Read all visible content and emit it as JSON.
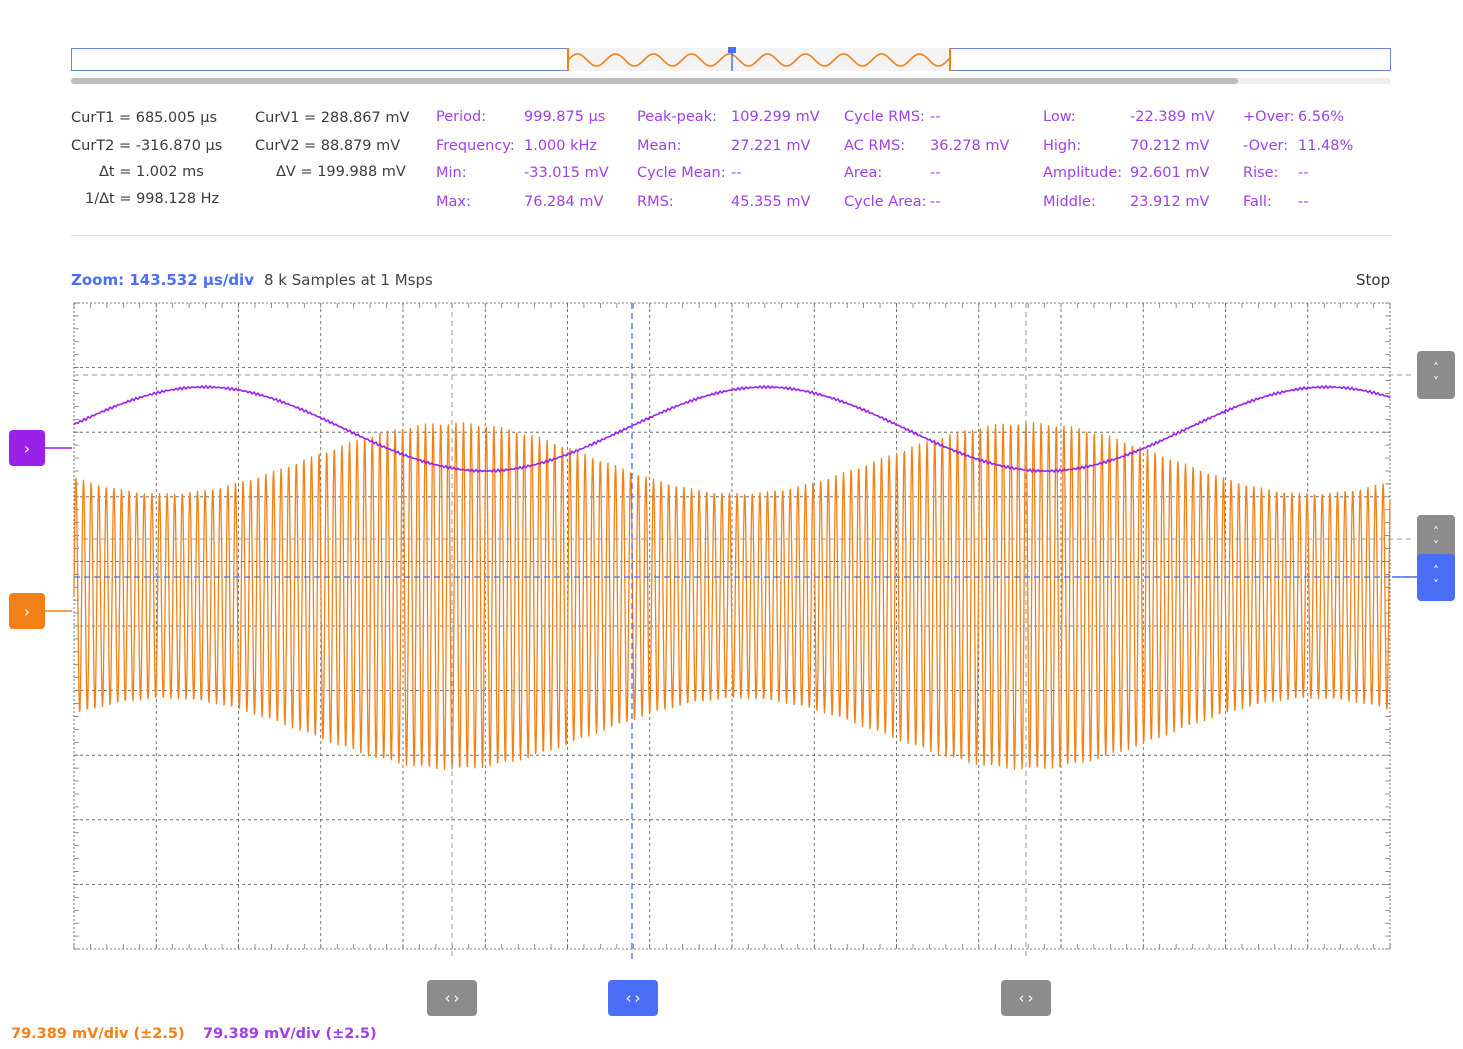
{
  "cursors": {
    "curT1": "CurT1 = 685.005 µs",
    "curT2": "CurT2 = -316.870 µs",
    "dt": "Δt = 1.002 ms",
    "inv_dt": "1/Δt = 998.128 Hz",
    "curV1": "CurV1 = 288.867 mV",
    "curV2": "CurV2 = 88.879 mV",
    "dv": "ΔV = 199.988 mV"
  },
  "measurements": {
    "period_label": "Period:",
    "period_value": "999.875 µs",
    "frequency_label": "Frequency:",
    "frequency_value": "1.000 kHz",
    "min_label": "Min:",
    "min_value": "-33.015 mV",
    "max_label": "Max:",
    "max_value": "76.284 mV",
    "peakpeak_label": "Peak-peak:",
    "peakpeak_value": "109.299 mV",
    "mean_label": "Mean:",
    "mean_value": "27.221 mV",
    "cyclemean_label": "Cycle Mean:",
    "cyclemean_value": "--",
    "rms_label": "RMS:",
    "rms_value": "45.355 mV",
    "cyclerms_label": "Cycle RMS:",
    "cyclerms_value": "--",
    "acrms_label": "AC RMS:",
    "acrms_value": "36.278 mV",
    "area_label": "Area:",
    "area_value": "--",
    "cyclearea_label": "Cycle Area:",
    "cyclearea_value": "--",
    "low_label": "Low:",
    "low_value": "-22.389 mV",
    "high_label": "High:",
    "high_value": "70.212 mV",
    "amplitude_label": "Amplitude:",
    "amplitude_value": "92.601 mV",
    "middle_label": "Middle:",
    "middle_value": "23.912 mV",
    "overpos_label": "+Over:",
    "overpos_value": "6.56%",
    "overneg_label": "-Over:",
    "overneg_value": "11.48%",
    "rise_label": "Rise:",
    "rise_value": "--",
    "fall_label": "Fall:",
    "fall_value": "--"
  },
  "plot_header": {
    "zoom": "Zoom: 143.532 µs/div",
    "samples": "8 k Samples at 1 Msps",
    "status": "Stop"
  },
  "scales": {
    "orange": "79.389 mV/div (±2.5)",
    "purple": "79.389 mV/div (±2.5)"
  },
  "icons": {
    "channel_marker": "chevron-right-icon",
    "vertical_handle": "chevron-up-down-icon",
    "horizontal_handle": "chevron-left-right-icon"
  },
  "chart_data": {
    "type": "line",
    "grid": "on",
    "series": [
      {
        "color": "#f28017",
        "shape": "amplitude-modulated sine"
      },
      {
        "color": "#9b21e8",
        "shape": "sine"
      }
    ]
  },
  "colors": {
    "orange": "#f28017",
    "purple": "#9b21e8",
    "cursor_blue": "#4a6ef5",
    "handle_gray": "#8c8c8c"
  }
}
